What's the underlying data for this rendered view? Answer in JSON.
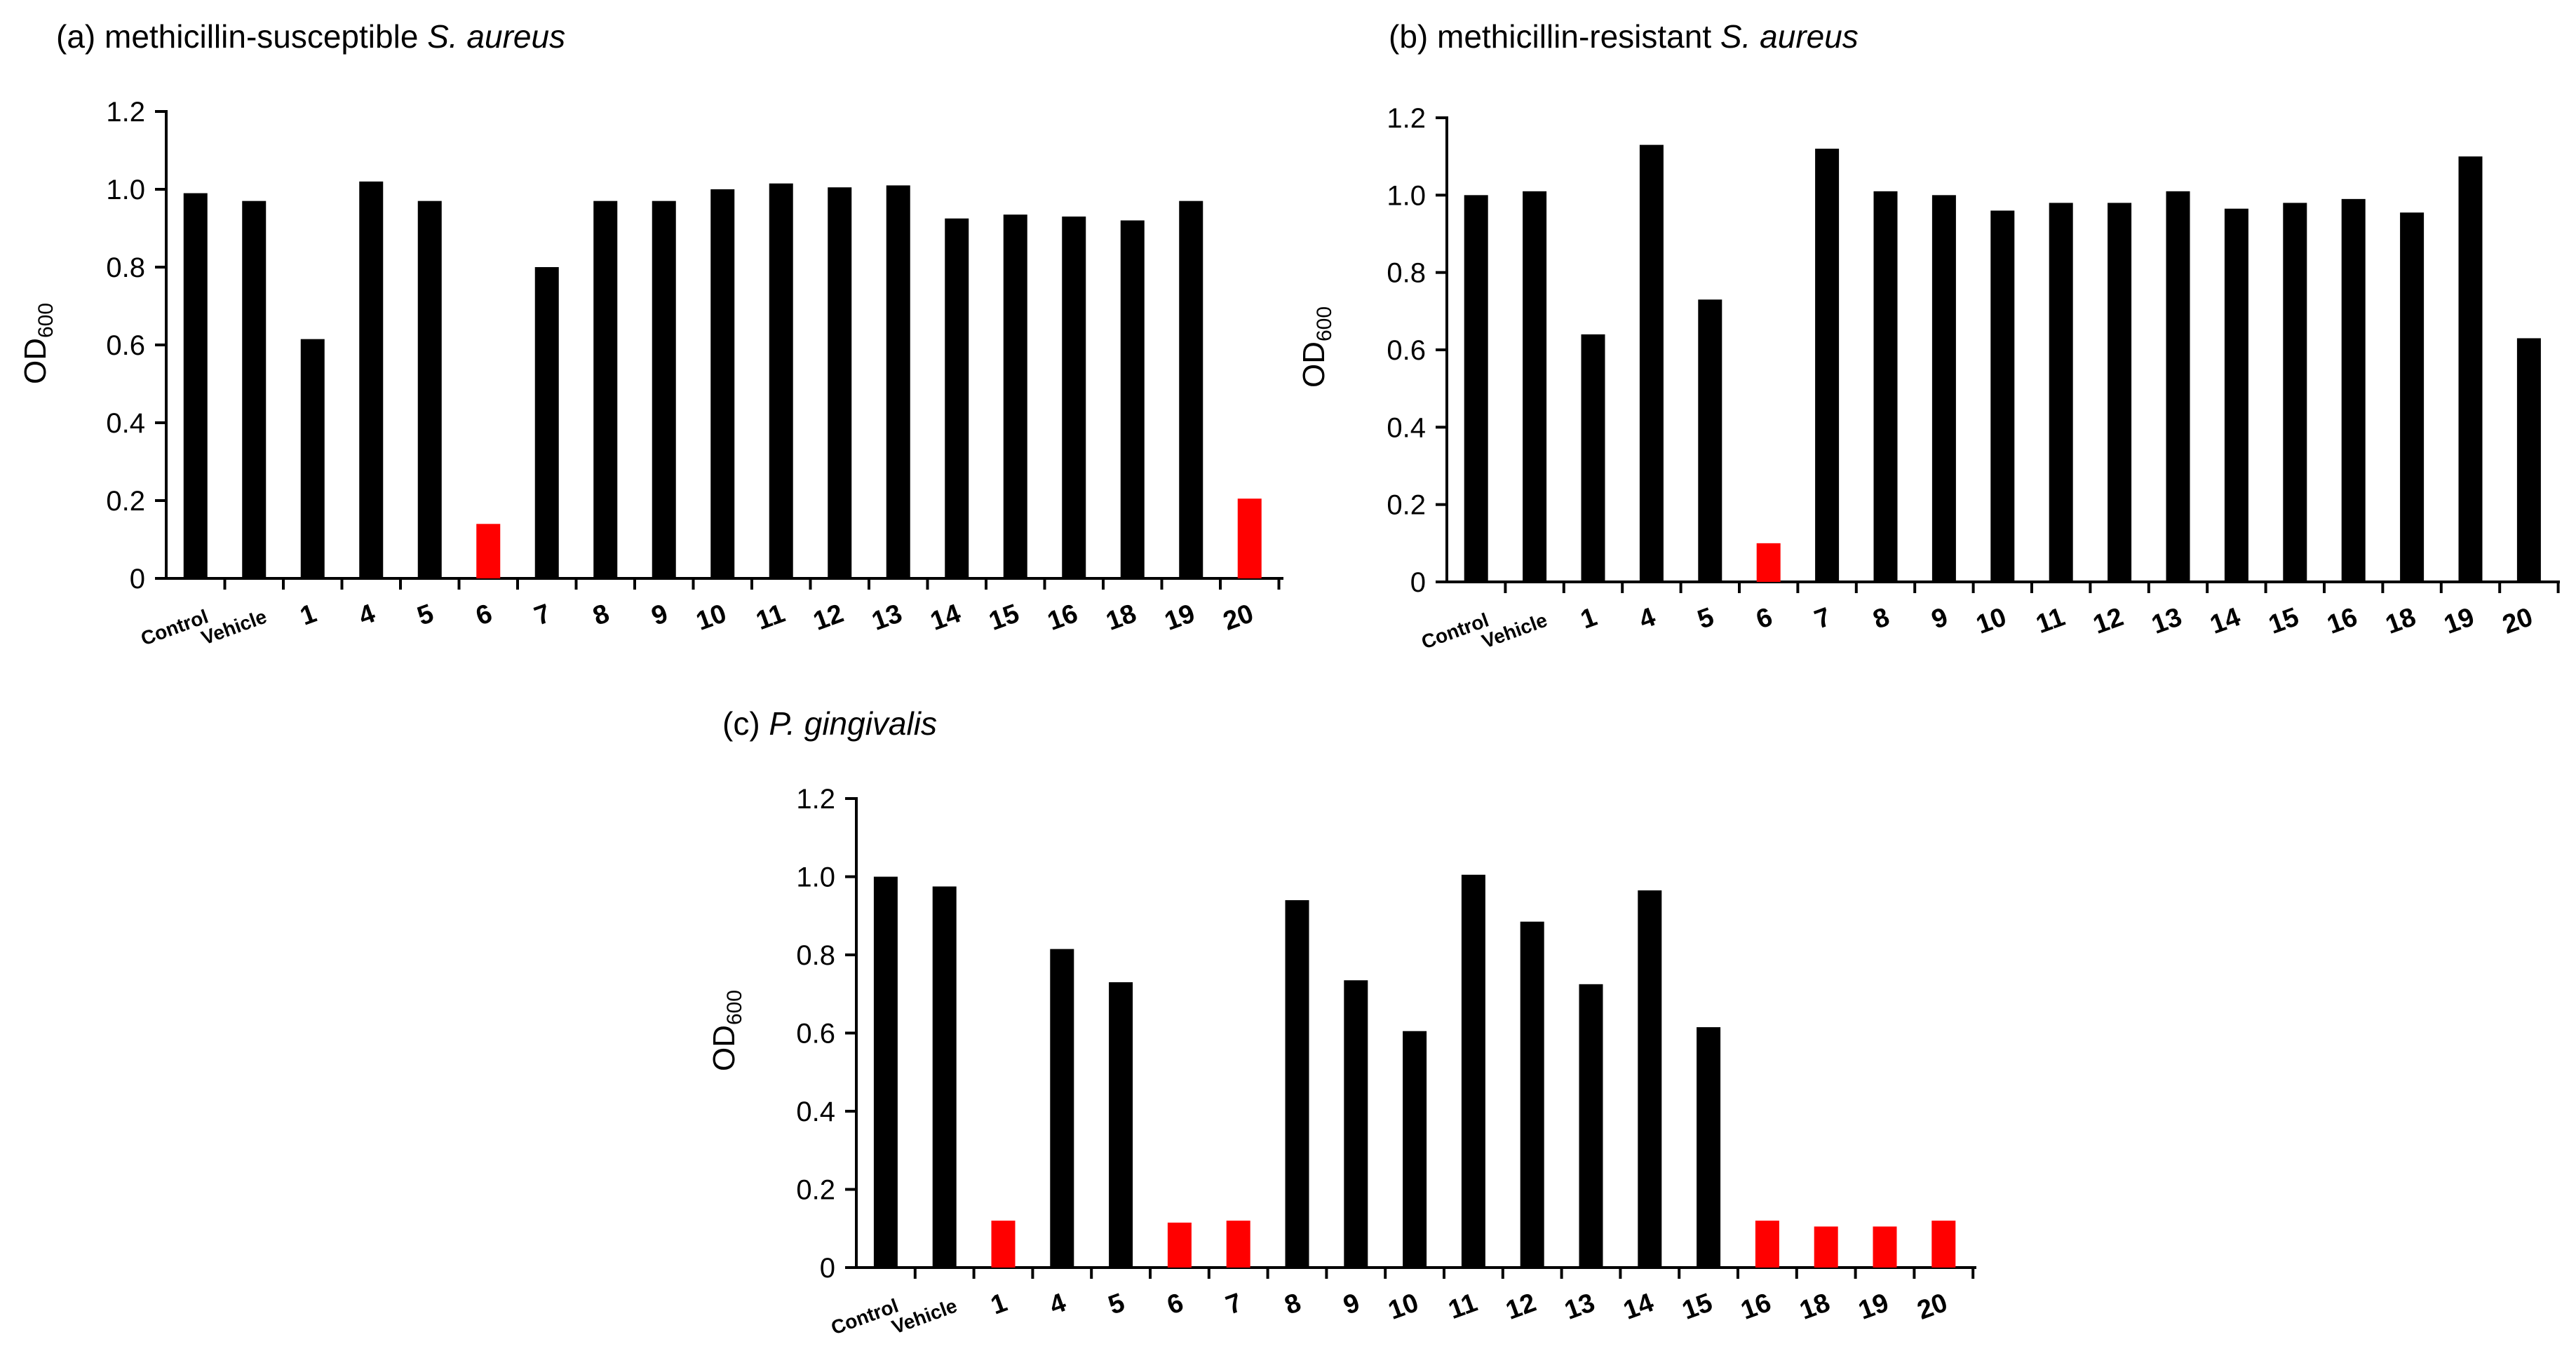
{
  "colors": {
    "default": "#000000",
    "highlight": "#ff0000"
  },
  "chart_data": [
    {
      "id": "a",
      "type": "bar",
      "title_prefix": "(a) methicillin-susceptible ",
      "title_italic": "S. aureus",
      "ylabel_main": "OD",
      "ylabel_sub": "600",
      "ylim": [
        0,
        1.2
      ],
      "yticks": [
        "0",
        "0.2",
        "0.4",
        "0.6",
        "0.8",
        "1.0",
        "1.2"
      ],
      "categories": [
        "Control",
        "Vehicle",
        "1",
        "4",
        "5",
        "6",
        "7",
        "8",
        "9",
        "10",
        "11",
        "12",
        "13",
        "14",
        "15",
        "16",
        "18",
        "19",
        "20"
      ],
      "values": [
        0.99,
        0.97,
        0.615,
        1.02,
        0.97,
        0.14,
        0.8,
        0.97,
        0.97,
        1.0,
        1.015,
        1.005,
        1.01,
        0.925,
        0.935,
        0.93,
        0.92,
        0.97,
        0.205
      ],
      "highlight": [
        "6",
        "20"
      ]
    },
    {
      "id": "b",
      "type": "bar",
      "title_prefix": "(b) methicillin-resistant ",
      "title_italic": "S. aureus",
      "ylabel_main": "OD",
      "ylabel_sub": "600",
      "ylim": [
        0,
        1.2
      ],
      "yticks": [
        "0",
        "0.2",
        "0.4",
        "0.6",
        "0.8",
        "1.0",
        "1.2"
      ],
      "categories": [
        "Control",
        "Vehicle",
        "1",
        "4",
        "5",
        "6",
        "7",
        "8",
        "9",
        "10",
        "11",
        "12",
        "13",
        "14",
        "15",
        "16",
        "18",
        "19",
        "20"
      ],
      "values": [
        1.0,
        1.01,
        0.64,
        1.13,
        0.73,
        0.1,
        1.12,
        1.01,
        1.0,
        0.96,
        0.98,
        0.98,
        1.01,
        0.965,
        0.98,
        0.99,
        0.955,
        1.1,
        0.63
      ],
      "highlight": [
        "6"
      ]
    },
    {
      "id": "c",
      "type": "bar",
      "title_prefix": "(c) ",
      "title_italic": "P. gingivalis",
      "ylabel_main": "OD",
      "ylabel_sub": "600",
      "ylim": [
        0,
        1.2
      ],
      "yticks": [
        "0",
        "0.2",
        "0.4",
        "0.6",
        "0.8",
        "1.0",
        "1.2"
      ],
      "categories": [
        "Control",
        "Vehicle",
        "1",
        "4",
        "5",
        "6",
        "7",
        "8",
        "9",
        "10",
        "11",
        "12",
        "13",
        "14",
        "15",
        "16",
        "18",
        "19",
        "20"
      ],
      "values": [
        1.0,
        0.975,
        0.12,
        0.815,
        0.73,
        0.115,
        0.12,
        0.94,
        0.735,
        0.605,
        1.005,
        0.885,
        0.725,
        0.965,
        0.615,
        0.12,
        0.105,
        0.105,
        0.12
      ],
      "highlight": [
        "1",
        "6",
        "7",
        "16",
        "18",
        "19",
        "20"
      ]
    }
  ]
}
